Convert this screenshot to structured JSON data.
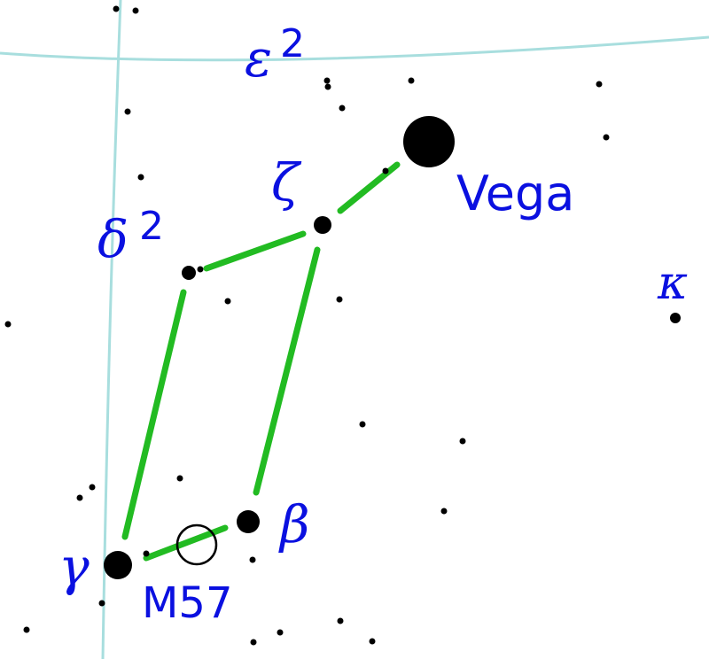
{
  "colors": {
    "background": "#ffffff",
    "grid": "#a8dede",
    "lines": "#22bb22",
    "stars": "#000000",
    "labels": "#0a10e0"
  },
  "star_labels": {
    "vega": "Vega",
    "zeta": "ζ",
    "delta": "δ",
    "delta_sup": "2",
    "epsilon": "ε",
    "epsilon_sup": "2",
    "kappa": "κ",
    "beta": "β",
    "gamma": "γ",
    "m57": "M57"
  }
}
